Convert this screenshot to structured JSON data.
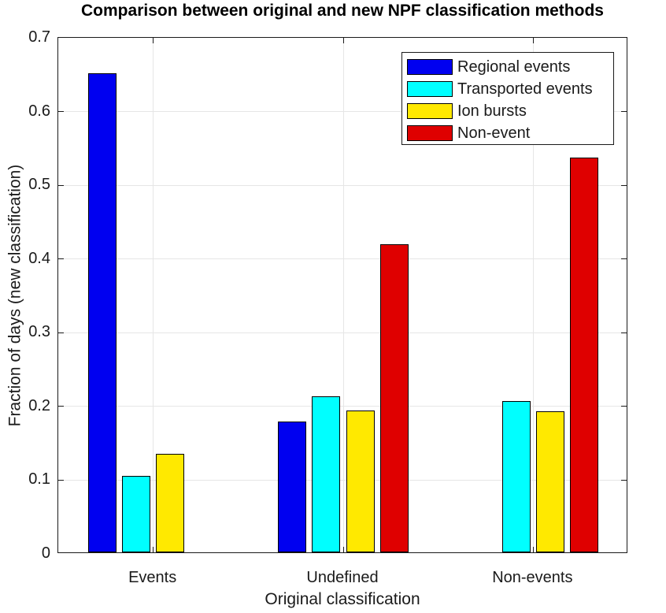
{
  "figure": {
    "title": "Comparison between original and new NPF classification methods",
    "xlabel": "Original classification",
    "ylabel": "Fraction of days (new classification)"
  },
  "chart_data": {
    "type": "bar",
    "title": "Comparison between original and new NPF classification methods",
    "xlabel": "Original classification",
    "ylabel": "Fraction of days (new classification)",
    "categories": [
      "Events",
      "Undefined",
      "Non-events"
    ],
    "series": [
      {
        "name": "Regional events",
        "color": "#0000f0",
        "values": [
          0.65,
          0.177,
          0
        ]
      },
      {
        "name": "Transported events",
        "color": "#00ffff",
        "values": [
          0.104,
          0.212,
          0.205
        ]
      },
      {
        "name": "Ion bursts",
        "color": "#ffe900",
        "values": [
          0.134,
          0.192,
          0.191
        ]
      },
      {
        "name": "Non-event",
        "color": "#df0000",
        "values": [
          0,
          0.418,
          0.535
        ]
      }
    ],
    "ylim": [
      0,
      0.7
    ],
    "yticks": [
      0,
      0.1,
      0.2,
      0.3,
      0.4,
      0.5,
      0.6,
      0.7
    ],
    "grid": true,
    "legend_position": "top-right",
    "bar_edge_color": "#000000"
  },
  "colors": {
    "grid": "#e6e6e6",
    "axis": "#1a1a1a",
    "background": "#ffffff"
  }
}
